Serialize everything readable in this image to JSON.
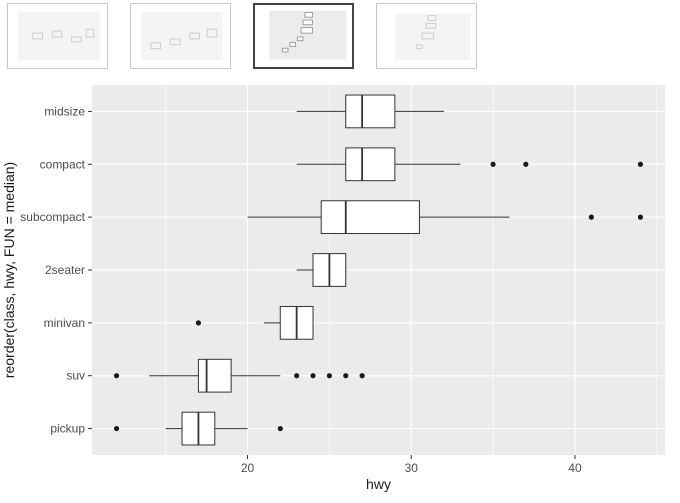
{
  "thumbnails": [
    {
      "name": "plot-thumbnail-1",
      "selected": false
    },
    {
      "name": "plot-thumbnail-2",
      "selected": false
    },
    {
      "name": "plot-thumbnail-3",
      "selected": true
    },
    {
      "name": "plot-thumbnail-4",
      "selected": false
    }
  ],
  "chart_data": {
    "type": "boxplot",
    "orientation": "horizontal",
    "title": "",
    "xlabel": "hwy",
    "ylabel": "reorder(class, hwy, FUN = median)",
    "xlim": [
      10.5,
      45.5
    ],
    "xticks": [
      20,
      30,
      40
    ],
    "grid": true,
    "legend": "none",
    "categories": [
      "midsize",
      "compact",
      "subcompact",
      "2seater",
      "minivan",
      "suv",
      "pickup"
    ],
    "series": [
      {
        "category": "midsize",
        "whisker_low": 23,
        "q1": 26,
        "median": 27,
        "q3": 29,
        "whisker_high": 32,
        "outliers": []
      },
      {
        "category": "compact",
        "whisker_low": 23,
        "q1": 26,
        "median": 27,
        "q3": 29,
        "whisker_high": 33,
        "outliers": [
          35,
          37,
          44
        ]
      },
      {
        "category": "subcompact",
        "whisker_low": 20,
        "q1": 24.5,
        "median": 26,
        "q3": 30.5,
        "whisker_high": 36,
        "outliers": [
          41,
          44
        ]
      },
      {
        "category": "2seater",
        "whisker_low": 23,
        "q1": 24,
        "median": 25,
        "q3": 26,
        "whisker_high": 26,
        "outliers": []
      },
      {
        "category": "minivan",
        "whisker_low": 21,
        "q1": 22,
        "median": 23,
        "q3": 24,
        "whisker_high": 24,
        "outliers": [
          17
        ]
      },
      {
        "category": "suv",
        "whisker_low": 14,
        "q1": 17,
        "median": 17.5,
        "q3": 19,
        "whisker_high": 22,
        "outliers": [
          12,
          23,
          24,
          25,
          26,
          27
        ]
      },
      {
        "category": "pickup",
        "whisker_low": 15,
        "q1": 16,
        "median": 17,
        "q3": 18,
        "whisker_high": 20,
        "outliers": [
          12,
          22
        ]
      }
    ],
    "colors": {
      "panel": "#ebebeb",
      "grid_major": "#ffffff",
      "box_fill": "#ffffff",
      "box_stroke": "#333333",
      "point": "#1a1a1a",
      "text": "#4d4d4d",
      "axis_title": "#1a1a1a"
    }
  }
}
